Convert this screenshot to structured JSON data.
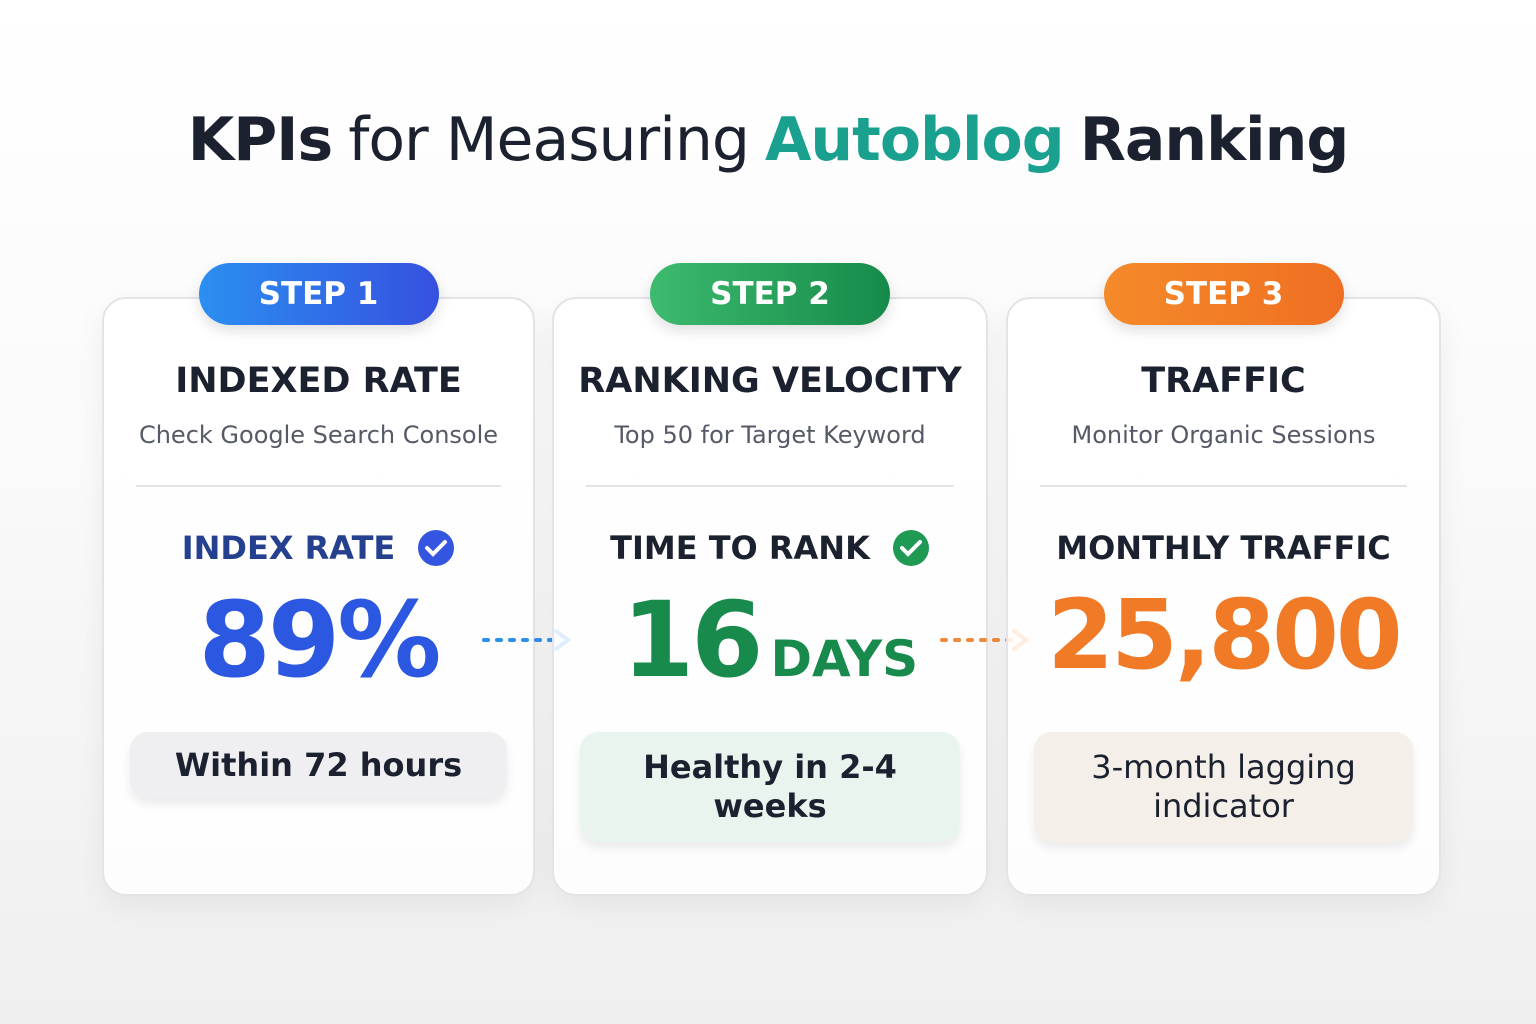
{
  "header": {
    "title_parts": [
      "KPIs",
      "for Measuring",
      "Autoblog",
      "Ranking"
    ]
  },
  "cards": [
    {
      "step": "STEP 1",
      "heading": "INDEXED RATE",
      "subtitle": "Check Google Search Console",
      "metric_label": "INDEX RATE",
      "value": "89%",
      "note": "Within 72 hours"
    },
    {
      "step": "STEP 2",
      "heading": "RANKING VELOCITY",
      "subtitle": "Top 50 for Target Keyword",
      "metric_label": "TIME TO RANK",
      "value": "16",
      "unit": "DAYS",
      "note": "Healthy in 2-4 weeks"
    },
    {
      "step": "STEP 3",
      "heading": "TRAFFIC",
      "subtitle": "Monitor Organic Sessions",
      "metric_label": "MONTHLY TRAFFIC",
      "value": "25,800",
      "note": "3-month lagging indicator"
    }
  ]
}
